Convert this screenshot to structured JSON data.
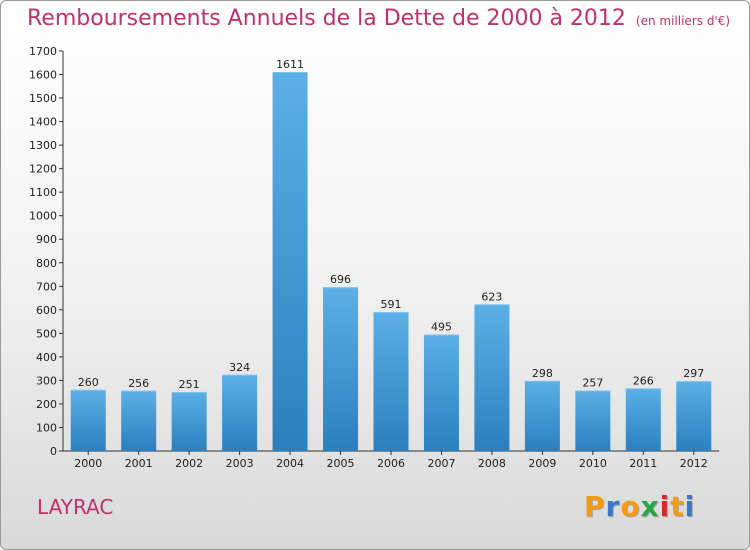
{
  "title": "Remboursements Annuels de la Dette de 2000 à 2012",
  "subtitle": "(en milliers d'€)",
  "commune": "LAYRAC",
  "logo": {
    "text": "Proxiti",
    "letters": [
      "P",
      "r",
      "o",
      "x",
      "i",
      "t",
      "i"
    ],
    "colors": [
      "#f39c12",
      "#3a78c4",
      "#f39c12",
      "#2aa64a",
      "#d62b2b",
      "#f39c12",
      "#3a78c4"
    ]
  },
  "colors": {
    "bar": "#3d98d6",
    "bar_dark": "#2a7fbf",
    "bar_light": "#5cb0e6",
    "title": "#c0306a"
  },
  "chart_data": {
    "type": "bar",
    "categories": [
      "2000",
      "2001",
      "2002",
      "2003",
      "2004",
      "2005",
      "2006",
      "2007",
      "2008",
      "2009",
      "2010",
      "2011",
      "2012"
    ],
    "values": [
      260,
      256,
      251,
      324,
      1611,
      696,
      591,
      495,
      623,
      298,
      257,
      266,
      297
    ],
    "value_labels": [
      "260",
      "256",
      "251",
      "324",
      "1611",
      "696",
      "591",
      "495",
      "623",
      "298",
      "257",
      "266",
      "297"
    ],
    "title": "Remboursements Annuels de la Dette de 2000 à 2012",
    "ylim": [
      0,
      1700
    ],
    "yticks": [
      0,
      100,
      200,
      300,
      400,
      500,
      600,
      700,
      800,
      900,
      1000,
      1100,
      1200,
      1300,
      1400,
      1500,
      1600,
      1700
    ],
    "grid": false
  }
}
